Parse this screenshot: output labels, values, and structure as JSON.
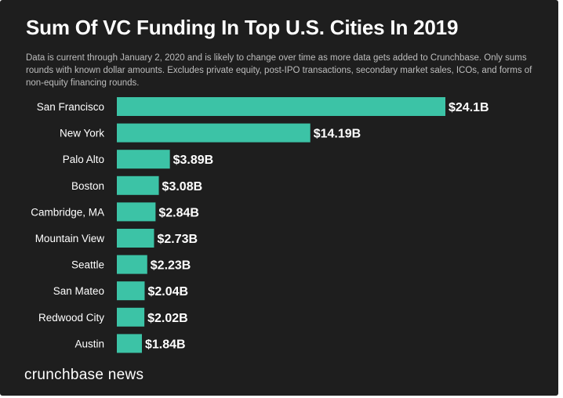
{
  "chart_data": {
    "type": "bar",
    "orientation": "horizontal",
    "title": "Sum Of VC Funding In Top U.S. Cities In 2019",
    "subtitle": "Data is current through January 2, 2020 and is likely to change over time as more data gets added to Crunchbase. Only sums rounds with known dollar amounts. Excludes private equity, post-IPO transactions, secondary market sales, ICOs, and forms of non-equity financing rounds.",
    "categories": [
      "San Francisco",
      "New York",
      "Palo Alto",
      "Boston",
      "Cambridge, MA",
      "Mountain View",
      "Seattle",
      "San Mateo",
      "Redwood City",
      "Austin"
    ],
    "values": [
      24.1,
      14.19,
      3.89,
      3.08,
      2.84,
      2.73,
      2.23,
      2.04,
      2.02,
      1.84
    ],
    "value_labels": [
      "$24.1B",
      "$14.19B",
      "$3.89B",
      "$3.08B",
      "$2.84B",
      "$2.73B",
      "$2.23B",
      "$2.04B",
      "$2.02B",
      "$1.84B"
    ],
    "unit": "Billions USD",
    "xlabel": "",
    "ylabel": "",
    "xlim": [
      0,
      24.1
    ]
  },
  "colors": {
    "background": "#1e1e1e",
    "bar": "#3cc3a6",
    "text": "#ffffff",
    "subtitle": "#bdbdbd"
  },
  "footer": {
    "brand": "crunchbase news"
  }
}
